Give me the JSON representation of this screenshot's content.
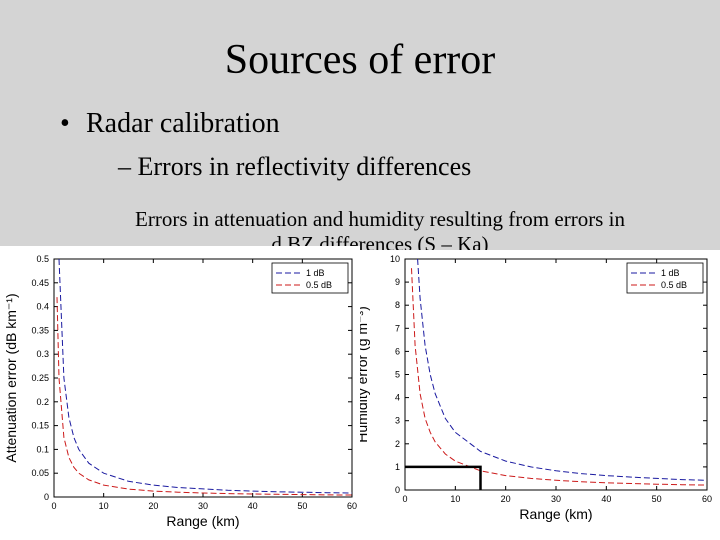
{
  "slide": {
    "title": "Sources of error",
    "bullet_symbol": "•",
    "bullet": "Radar calibration",
    "sub_bullet": "– Errors in reflectivity differences",
    "caption_line1": "Errors in attenuation and humidity resulting from errors in",
    "caption_line2": "d.BZ differences (S – Ka)"
  },
  "colors": {
    "background": "#d4d4d4",
    "series_1db": "#1a1aa0",
    "series_05db": "#cc1a1a",
    "marker": "#000000"
  },
  "chart_data": [
    {
      "type": "line",
      "xlabel": "Range (km)",
      "ylabel": "Attenuation error (dB km⁻¹)",
      "xlim": [
        0,
        60
      ],
      "ylim": [
        0,
        0.5
      ],
      "xticks": [
        0,
        10,
        20,
        30,
        40,
        50,
        60
      ],
      "yticks": [
        0,
        0.05,
        0.1,
        0.15,
        0.2,
        0.25,
        0.3,
        0.35,
        0.4,
        0.45,
        0.5
      ],
      "ytick_labels": [
        "0",
        "0.05",
        "0.1",
        "0.15",
        "0.2",
        "0.25",
        "0.3",
        "0.35",
        "0.4",
        "0.45",
        "0.5"
      ],
      "legend_position": "top-right",
      "series": [
        {
          "name": "1 dB",
          "style": "dashed",
          "color": "#1a1aa0",
          "x": [
            1,
            2,
            3,
            4,
            5,
            7,
            10,
            15,
            20,
            25,
            30,
            35,
            40,
            45,
            50,
            55,
            60
          ],
          "y": [
            0.5,
            0.25,
            0.167,
            0.125,
            0.1,
            0.071,
            0.05,
            0.033,
            0.025,
            0.02,
            0.017,
            0.014,
            0.0125,
            0.011,
            0.01,
            0.009,
            0.0083
          ]
        },
        {
          "name": "0.5 dB",
          "style": "dashed",
          "color": "#cc1a1a",
          "x": [
            0.6,
            1,
            2,
            3,
            4,
            5,
            7,
            10,
            15,
            20,
            25,
            30,
            35,
            40,
            45,
            50,
            55,
            60
          ],
          "y": [
            0.42,
            0.25,
            0.125,
            0.083,
            0.0625,
            0.05,
            0.036,
            0.025,
            0.0167,
            0.0125,
            0.01,
            0.0083,
            0.0071,
            0.00625,
            0.0056,
            0.005,
            0.0045,
            0.0042
          ]
        }
      ]
    },
    {
      "type": "line",
      "xlabel": "Range (km)",
      "ylabel": "Humidity error (g m⁻³)",
      "xlim": [
        0,
        60
      ],
      "ylim": [
        0,
        10
      ],
      "xticks": [
        0,
        10,
        20,
        30,
        40,
        50,
        60
      ],
      "yticks": [
        0,
        1,
        2,
        3,
        4,
        5,
        6,
        7,
        8,
        9,
        10
      ],
      "ytick_labels": [
        "0",
        "1",
        "2",
        "3",
        "4",
        "5",
        "6",
        "7",
        "8",
        "9",
        "10"
      ],
      "legend_position": "top-right",
      "series": [
        {
          "name": "1 dB",
          "style": "dashed",
          "color": "#1a1aa0",
          "x": [
            2.5,
            3,
            4,
            5,
            6,
            8,
            10,
            15,
            20,
            25,
            30,
            35,
            40,
            45,
            50,
            55,
            60
          ],
          "y": [
            10,
            8.3,
            6.25,
            5,
            4.17,
            3.1,
            2.5,
            1.67,
            1.25,
            1,
            0.83,
            0.71,
            0.625,
            0.56,
            0.5,
            0.45,
            0.42
          ]
        },
        {
          "name": "0.5 dB",
          "style": "dashed",
          "color": "#cc1a1a",
          "x": [
            1.3,
            2,
            3,
            4,
            5,
            6,
            8,
            10,
            15,
            20,
            25,
            30,
            35,
            40,
            45,
            50,
            55,
            60
          ],
          "y": [
            9.6,
            6.25,
            4.17,
            3.1,
            2.5,
            2.08,
            1.56,
            1.25,
            0.83,
            0.625,
            0.5,
            0.42,
            0.36,
            0.31,
            0.28,
            0.25,
            0.23,
            0.21
          ]
        }
      ],
      "marker": {
        "x": [
          0,
          15
        ],
        "y": [
          0,
          1
        ]
      }
    }
  ]
}
